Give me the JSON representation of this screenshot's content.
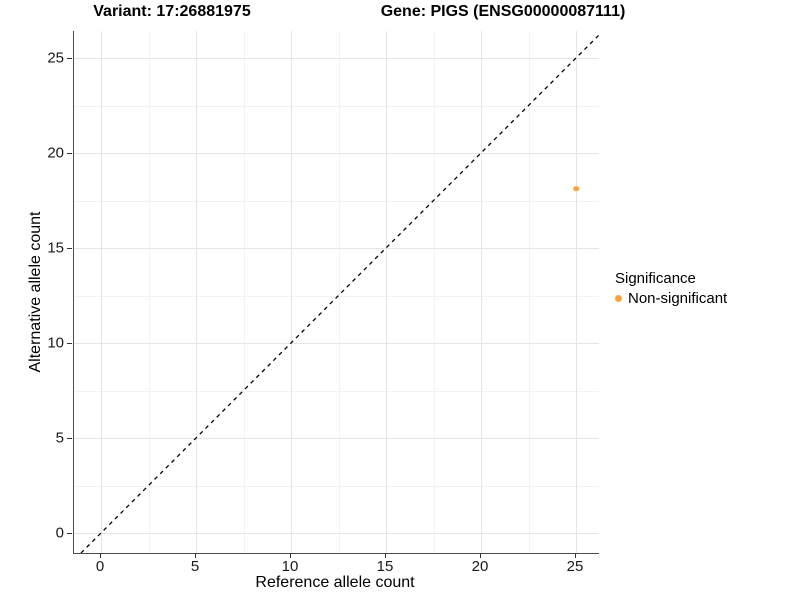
{
  "titles": {
    "variant": "Variant: 17:26881975",
    "gene": "Gene: PIGS (ENSG00000087111)"
  },
  "chart_data": {
    "type": "scatter",
    "title_left": "Variant: 17:26881975",
    "title_right": "Gene: PIGS (ENSG00000087111)",
    "xlabel": "Reference allele count",
    "ylabel": "Alternative allele count",
    "xlim": [
      -1.4,
      26.2
    ],
    "ylim": [
      -1.05,
      26.4
    ],
    "x_major_ticks": [
      0,
      5,
      10,
      15,
      20,
      25
    ],
    "y_major_ticks": [
      0,
      5,
      10,
      15,
      20,
      25
    ],
    "x_minor_ticks": [
      2.5,
      7.5,
      12.5,
      17.5,
      22.5
    ],
    "y_minor_ticks": [
      2.5,
      7.5,
      12.5,
      17.5,
      22.5
    ],
    "grid": true,
    "identity_line": {
      "type": "dashed",
      "color": "#000000",
      "from": [
        0,
        0
      ],
      "slope": 1
    },
    "series": [
      {
        "name": "Non-significant",
        "color": "#faa43a",
        "points": [
          {
            "x": 25,
            "y": 18
          }
        ]
      }
    ],
    "legend": {
      "title": "Significance",
      "position": "right",
      "entries": [
        {
          "label": "Non-significant",
          "color": "#faa43a"
        }
      ]
    }
  },
  "colors": {
    "axis_line": "#4d4d4d",
    "grid_major": "#e5e5e5",
    "grid_minor": "#f2f2f2",
    "point_orange": "#faa43a",
    "background": "#ffffff"
  }
}
